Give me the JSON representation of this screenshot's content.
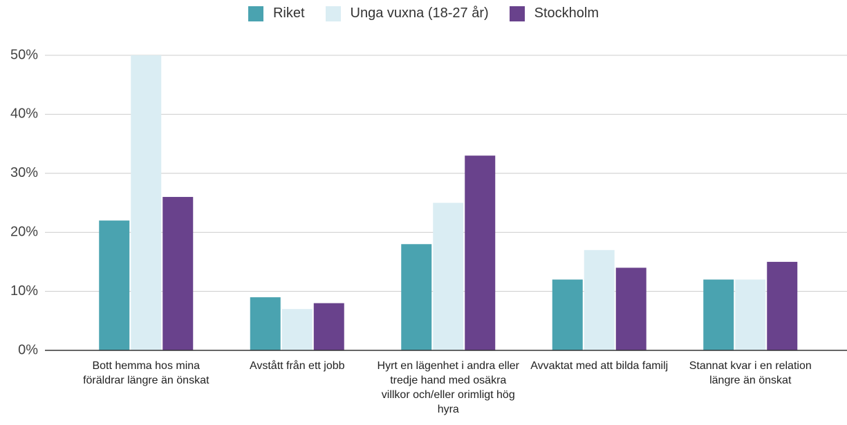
{
  "chart_data": {
    "type": "bar",
    "categories": [
      "Bott hemma hos mina föräldrar längre än önskat",
      "Avstått från ett jobb",
      "Hyrt en lägenhet i andra eller tredje hand med osäkra villkor och/eller orimligt hög hyra",
      "Avvaktat med att bilda familj",
      "Stannat kvar i en relation längre än önskat"
    ],
    "series": [
      {
        "name": "Riket",
        "color": "#4aa3b0",
        "values": [
          22,
          9,
          18,
          12,
          12
        ]
      },
      {
        "name": "Unga vuxna (18-27 år)",
        "color": "#daedf3",
        "values": [
          50,
          7,
          25,
          17,
          12
        ]
      },
      {
        "name": "Stockholm",
        "color": "#69428c",
        "values": [
          26,
          8,
          33,
          14,
          15
        ]
      }
    ],
    "ylim": [
      0,
      50
    ],
    "yticks": [
      {
        "value": 0,
        "label": "0%"
      },
      {
        "value": 10,
        "label": "10%"
      },
      {
        "value": 20,
        "label": "20%"
      },
      {
        "value": 30,
        "label": "30%"
      },
      {
        "value": 40,
        "label": "40%"
      },
      {
        "value": 50,
        "label": "50%"
      }
    ],
    "grid": true,
    "legend": "top"
  }
}
